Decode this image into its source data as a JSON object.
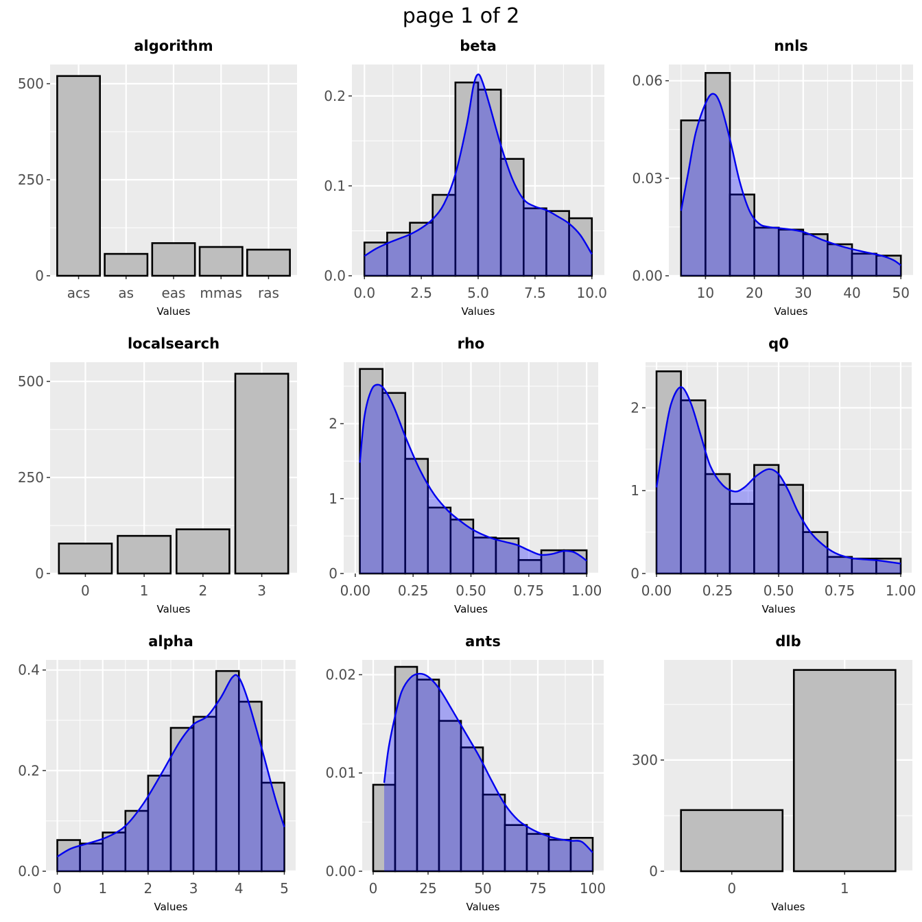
{
  "page_title": "page 1 of 2",
  "colors": {
    "panel_bg": "#ebebeb",
    "grid": "#ffffff",
    "bar_fill": "#bebebe",
    "bar_stroke": "#000000",
    "density_fill": "#0000ff",
    "density_fill_opacity": 0.3,
    "density_line": "#0000ee",
    "tick_text": "#4d4d4d"
  },
  "chart_data": [
    {
      "id": "algorithm",
      "type": "bar",
      "title": "algorithm",
      "xlabel": "Values",
      "categories": [
        "acs",
        "as",
        "eas",
        "mmas",
        "ras"
      ],
      "values": [
        520,
        57,
        85,
        75,
        68
      ],
      "ylim": [
        0,
        550
      ],
      "yticks": [
        0,
        250,
        500
      ],
      "ytick_labels": [
        "0",
        "250",
        "500"
      ]
    },
    {
      "id": "beta",
      "type": "histogram",
      "title": "beta",
      "xlabel": "Values",
      "xlim": [
        -0.55,
        10.55
      ],
      "ylim": [
        0,
        0.235
      ],
      "xticks": [
        0,
        2.5,
        5,
        7.5,
        10
      ],
      "xtick_labels": [
        "0.0",
        "2.5",
        "5.0",
        "7.5",
        "10.0"
      ],
      "yticks": [
        0,
        0.1,
        0.2
      ],
      "ytick_labels": [
        "0.0",
        "0.1",
        "0.2"
      ],
      "bins": [
        0,
        1,
        2,
        3,
        4,
        5,
        6,
        7,
        8,
        9,
        10
      ],
      "values": [
        0.037,
        0.048,
        0.059,
        0.09,
        0.215,
        0.207,
        0.13,
        0.075,
        0.072,
        0.064
      ],
      "density": [
        [
          0,
          0.022
        ],
        [
          0.5,
          0.03
        ],
        [
          1,
          0.036
        ],
        [
          1.5,
          0.041
        ],
        [
          2,
          0.046
        ],
        [
          2.5,
          0.053
        ],
        [
          3,
          0.063
        ],
        [
          3.5,
          0.08
        ],
        [
          4,
          0.113
        ],
        [
          4.5,
          0.168
        ],
        [
          4.8,
          0.212
        ],
        [
          5,
          0.224
        ],
        [
          5.2,
          0.215
        ],
        [
          5.5,
          0.19
        ],
        [
          6,
          0.145
        ],
        [
          6.5,
          0.108
        ],
        [
          7,
          0.085
        ],
        [
          7.5,
          0.077
        ],
        [
          8,
          0.073
        ],
        [
          8.5,
          0.066
        ],
        [
          9,
          0.058
        ],
        [
          9.5,
          0.045
        ],
        [
          10,
          0.024
        ]
      ]
    },
    {
      "id": "nnls",
      "type": "histogram",
      "title": "nnls",
      "xlabel": "Values",
      "xlim": [
        2.5,
        52.5
      ],
      "ylim": [
        0,
        0.065
      ],
      "xticks": [
        10,
        20,
        30,
        40,
        50
      ],
      "xtick_labels": [
        "10",
        "20",
        "30",
        "40",
        "50"
      ],
      "yticks": [
        0,
        0.03,
        0.06
      ],
      "ytick_labels": [
        "0.00",
        "0.03",
        "0.06"
      ],
      "bins": [
        5,
        10,
        15,
        20,
        25,
        30,
        35,
        40,
        45,
        50
      ],
      "values": [
        0.0478,
        0.0624,
        0.025,
        0.0148,
        0.0142,
        0.0128,
        0.0097,
        0.0068,
        0.0062
      ],
      "density": [
        [
          5,
          0.02
        ],
        [
          6.5,
          0.032
        ],
        [
          8,
          0.044
        ],
        [
          10,
          0.053
        ],
        [
          11.5,
          0.056
        ],
        [
          13,
          0.053
        ],
        [
          15,
          0.042
        ],
        [
          17,
          0.029
        ],
        [
          19,
          0.02
        ],
        [
          21,
          0.016
        ],
        [
          23,
          0.015
        ],
        [
          26,
          0.0145
        ],
        [
          30,
          0.0135
        ],
        [
          34,
          0.011
        ],
        [
          38,
          0.009
        ],
        [
          42,
          0.0075
        ],
        [
          46,
          0.0062
        ],
        [
          48.5,
          0.0048
        ],
        [
          50,
          0.0032
        ]
      ]
    },
    {
      "id": "localsearch",
      "type": "bar",
      "title": "localsearch",
      "xlabel": "Values",
      "categories": [
        "0",
        "1",
        "2",
        "3"
      ],
      "values": [
        78,
        98,
        115,
        520
      ],
      "ylim": [
        0,
        550
      ],
      "yticks": [
        0,
        250,
        500
      ],
      "ytick_labels": [
        "0",
        "250",
        "500"
      ]
    },
    {
      "id": "rho",
      "type": "histogram",
      "title": "rho",
      "xlabel": "Values",
      "xlim": [
        -0.05,
        1.05
      ],
      "ylim": [
        0,
        2.82
      ],
      "xticks": [
        0,
        0.25,
        0.5,
        0.75,
        1
      ],
      "xtick_labels": [
        "0.00",
        "0.25",
        "0.50",
        "0.75",
        "1.00"
      ],
      "yticks": [
        0,
        1,
        2
      ],
      "ytick_labels": [
        "0",
        "1",
        "2"
      ],
      "bins": [
        0.02,
        0.118,
        0.216,
        0.314,
        0.412,
        0.51,
        0.608,
        0.706,
        0.804,
        0.902,
        1.0
      ],
      "values": [
        2.73,
        2.41,
        1.53,
        0.88,
        0.72,
        0.48,
        0.47,
        0.18,
        0.31,
        0.31
      ],
      "density": [
        [
          0.02,
          1.48
        ],
        [
          0.04,
          2.1
        ],
        [
          0.07,
          2.45
        ],
        [
          0.1,
          2.52
        ],
        [
          0.13,
          2.44
        ],
        [
          0.17,
          2.2
        ],
        [
          0.22,
          1.8
        ],
        [
          0.28,
          1.38
        ],
        [
          0.34,
          1.06
        ],
        [
          0.4,
          0.84
        ],
        [
          0.45,
          0.71
        ],
        [
          0.5,
          0.6
        ],
        [
          0.55,
          0.52
        ],
        [
          0.6,
          0.46
        ],
        [
          0.65,
          0.42
        ],
        [
          0.7,
          0.38
        ],
        [
          0.75,
          0.31
        ],
        [
          0.8,
          0.25
        ],
        [
          0.85,
          0.26
        ],
        [
          0.9,
          0.3
        ],
        [
          0.94,
          0.29
        ],
        [
          0.97,
          0.24
        ],
        [
          1.0,
          0.17
        ]
      ]
    },
    {
      "id": "q0",
      "type": "histogram",
      "title": "q0",
      "xlabel": "Values",
      "xlim": [
        -0.045,
        1.045
      ],
      "ylim": [
        0,
        2.55
      ],
      "xticks": [
        0,
        0.25,
        0.5,
        0.75,
        1
      ],
      "xtick_labels": [
        "0.00",
        "0.25",
        "0.50",
        "0.75",
        "1.00"
      ],
      "yticks": [
        0,
        1,
        2
      ],
      "ytick_labels": [
        "0",
        "1",
        "2"
      ],
      "bins": [
        0,
        0.1,
        0.2,
        0.3,
        0.4,
        0.5,
        0.6,
        0.7,
        0.8,
        0.9,
        1.0
      ],
      "values": [
        2.44,
        2.09,
        1.2,
        0.84,
        1.31,
        1.07,
        0.5,
        0.2,
        0.18,
        0.18
      ],
      "density": [
        [
          0,
          1.04
        ],
        [
          0.03,
          1.6
        ],
        [
          0.06,
          2.05
        ],
        [
          0.1,
          2.25
        ],
        [
          0.14,
          2.06
        ],
        [
          0.18,
          1.68
        ],
        [
          0.22,
          1.3
        ],
        [
          0.27,
          1.07
        ],
        [
          0.32,
          0.99
        ],
        [
          0.36,
          1.04
        ],
        [
          0.41,
          1.18
        ],
        [
          0.46,
          1.26
        ],
        [
          0.5,
          1.2
        ],
        [
          0.54,
          1.0
        ],
        [
          0.58,
          0.74
        ],
        [
          0.63,
          0.5
        ],
        [
          0.68,
          0.35
        ],
        [
          0.73,
          0.25
        ],
        [
          0.79,
          0.19
        ],
        [
          0.85,
          0.17
        ],
        [
          0.9,
          0.16
        ],
        [
          0.95,
          0.14
        ],
        [
          1.0,
          0.12
        ]
      ]
    },
    {
      "id": "alpha",
      "type": "histogram",
      "title": "alpha",
      "xlabel": "Values",
      "xlim": [
        -0.25,
        5.25
      ],
      "ylim": [
        0,
        0.42
      ],
      "xticks": [
        0,
        1,
        2,
        3,
        4,
        5
      ],
      "xtick_labels": [
        "0",
        "1",
        "2",
        "3",
        "4",
        "5"
      ],
      "yticks": [
        0,
        0.2,
        0.4
      ],
      "ytick_labels": [
        "0.0",
        "0.2",
        "0.4"
      ],
      "bins": [
        0,
        0.5,
        1,
        1.5,
        2,
        2.5,
        3,
        3.5,
        4,
        4.5,
        5
      ],
      "values": [
        0.062,
        0.055,
        0.077,
        0.12,
        0.19,
        0.285,
        0.307,
        0.398,
        0.337,
        0.176
      ],
      "density": [
        [
          0,
          0.029
        ],
        [
          0.3,
          0.045
        ],
        [
          0.7,
          0.056
        ],
        [
          1.1,
          0.068
        ],
        [
          1.5,
          0.09
        ],
        [
          1.9,
          0.135
        ],
        [
          2.3,
          0.195
        ],
        [
          2.7,
          0.258
        ],
        [
          3.0,
          0.292
        ],
        [
          3.3,
          0.308
        ],
        [
          3.6,
          0.345
        ],
        [
          3.85,
          0.385
        ],
        [
          4.0,
          0.385
        ],
        [
          4.2,
          0.34
        ],
        [
          4.5,
          0.245
        ],
        [
          4.8,
          0.145
        ],
        [
          5.0,
          0.088
        ]
      ]
    },
    {
      "id": "ants",
      "type": "histogram",
      "title": "ants",
      "xlabel": "Values",
      "xlim": [
        -5,
        105
      ],
      "ylim": [
        0,
        0.0215
      ],
      "xticks": [
        0,
        25,
        50,
        75,
        100
      ],
      "xtick_labels": [
        "0",
        "25",
        "50",
        "75",
        "100"
      ],
      "yticks": [
        0,
        0.01,
        0.02
      ],
      "ytick_labels": [
        "0.00",
        "0.01",
        "0.02"
      ],
      "bins": [
        0,
        10,
        20,
        30,
        40,
        50,
        60,
        70,
        80,
        90,
        100
      ],
      "values": [
        0.0088,
        0.0208,
        0.0195,
        0.0153,
        0.0126,
        0.0078,
        0.0047,
        0.0038,
        0.0032,
        0.0034
      ],
      "density": [
        [
          5,
          0.009
        ],
        [
          7,
          0.0125
        ],
        [
          10,
          0.0158
        ],
        [
          13,
          0.0183
        ],
        [
          17,
          0.0197
        ],
        [
          21,
          0.0201
        ],
        [
          25,
          0.0198
        ],
        [
          30,
          0.0186
        ],
        [
          36,
          0.0164
        ],
        [
          42,
          0.0141
        ],
        [
          48,
          0.0118
        ],
        [
          54,
          0.0092
        ],
        [
          60,
          0.0068
        ],
        [
          66,
          0.0052
        ],
        [
          72,
          0.0043
        ],
        [
          78,
          0.0037
        ],
        [
          84,
          0.0033
        ],
        [
          90,
          0.0031
        ],
        [
          95,
          0.003
        ],
        [
          100,
          0.0019
        ]
      ]
    },
    {
      "id": "dlb",
      "type": "bar",
      "title": "dlb",
      "xlabel": "Values",
      "categories": [
        "0",
        "1"
      ],
      "values": [
        165,
        543
      ],
      "ylim": [
        0,
        570
      ],
      "yticks": [
        0,
        300
      ],
      "ytick_labels": [
        "0",
        "300"
      ]
    }
  ]
}
